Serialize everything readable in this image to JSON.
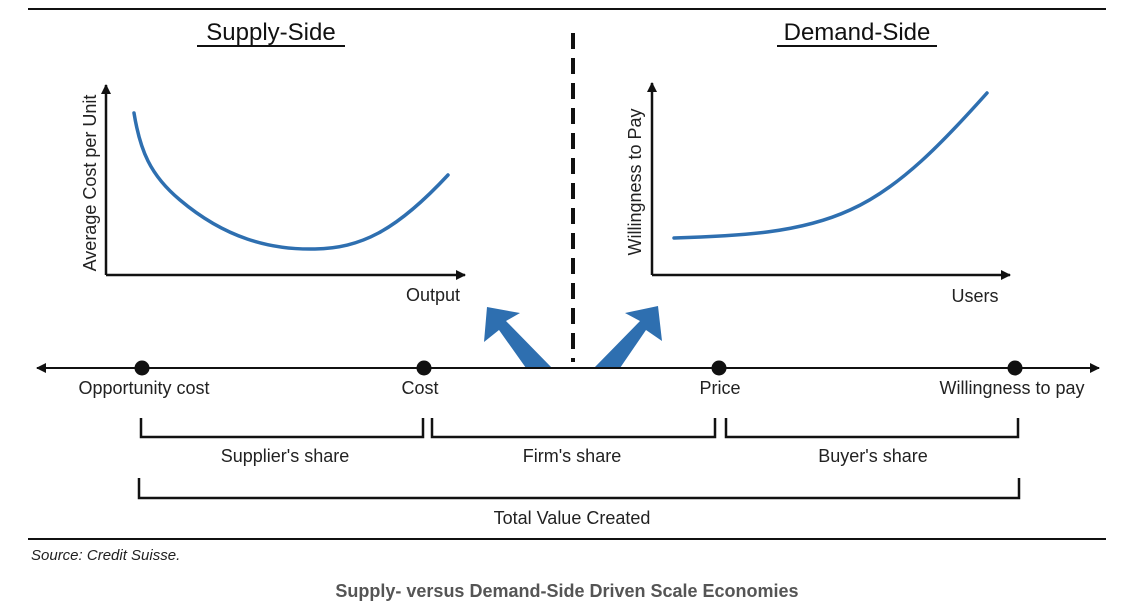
{
  "supply_side": {
    "title": "Supply-Side",
    "ylabel": "Average Cost per Unit",
    "xlabel": "Output"
  },
  "demand_side": {
    "title": "Demand-Side",
    "ylabel": "Willingness to Pay",
    "xlabel": "Users"
  },
  "value_line": {
    "points": [
      "Opportunity cost",
      "Cost",
      "Price",
      "Willingness to pay"
    ],
    "shares": [
      "Supplier's share",
      "Firm's share",
      "Buyer's share"
    ],
    "total": "Total Value Created"
  },
  "source": "Source: Credit Suisse.",
  "caption": "Supply- versus Demand-Side Driven Scale Economies",
  "colors": {
    "curve": "#2e6fb0",
    "arrow": "#2e6fb0",
    "line": "#111111"
  }
}
